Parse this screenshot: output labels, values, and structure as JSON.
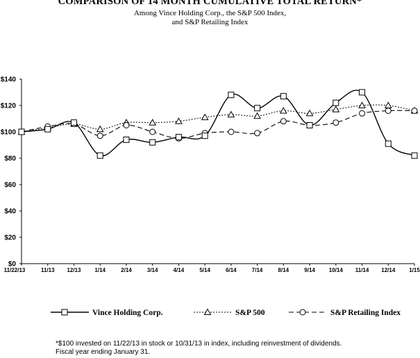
{
  "title": "COMPARISON OF 14 MONTH CUMULATIVE TOTAL RETURN*",
  "subtitle_line1": "Among Vince Holding Corp., the S&P 500 Index,",
  "subtitle_line2": "and S&P Retailing Index",
  "footnote_line1": "*$100 invested on 11/22/13 in stock or 10/31/13 in index, including reinvestment of dividends.",
  "footnote_line2": "Fiscal year ending January 31.",
  "chart_data": {
    "type": "line",
    "title": "COMPARISON OF 14 MONTH CUMULATIVE TOTAL RETURN*",
    "xlabel": "",
    "ylabel": "",
    "ylim": [
      0,
      140
    ],
    "ytick_step": 20,
    "yticks": [
      "$0",
      "$20",
      "$40",
      "$60",
      "$80",
      "$100",
      "$120",
      "$140"
    ],
    "grid": false,
    "legend_position": "bottom",
    "categories": [
      "11/22/13",
      "11/13",
      "12/13",
      "1/14",
      "2/14",
      "3/14",
      "4/14",
      "5/14",
      "6/14",
      "7/14",
      "8/14",
      "9/14",
      "10/14",
      "11/14",
      "12/14",
      "1/15"
    ],
    "series": [
      {
        "name": "Vince Holding Corp.",
        "marker": "square",
        "line": "solid",
        "color": "#000000",
        "values": [
          100,
          102,
          107,
          82,
          94,
          92,
          96,
          97,
          128,
          118,
          127,
          105,
          122,
          130,
          91,
          82
        ]
      },
      {
        "name": "S&P 500",
        "marker": "triangle",
        "line": "dotted",
        "color": "#000000",
        "values": [
          100,
          103,
          106,
          102,
          107,
          107,
          108,
          111,
          113,
          112,
          116,
          114,
          117,
          120,
          120,
          116
        ]
      },
      {
        "name": "S&P Retailing Index",
        "marker": "circle",
        "line": "dashed",
        "color": "#000000",
        "values": [
          100,
          104,
          106,
          97,
          105,
          100,
          95,
          99,
          100,
          99,
          108,
          105,
          107,
          114,
          116,
          116
        ]
      }
    ]
  }
}
